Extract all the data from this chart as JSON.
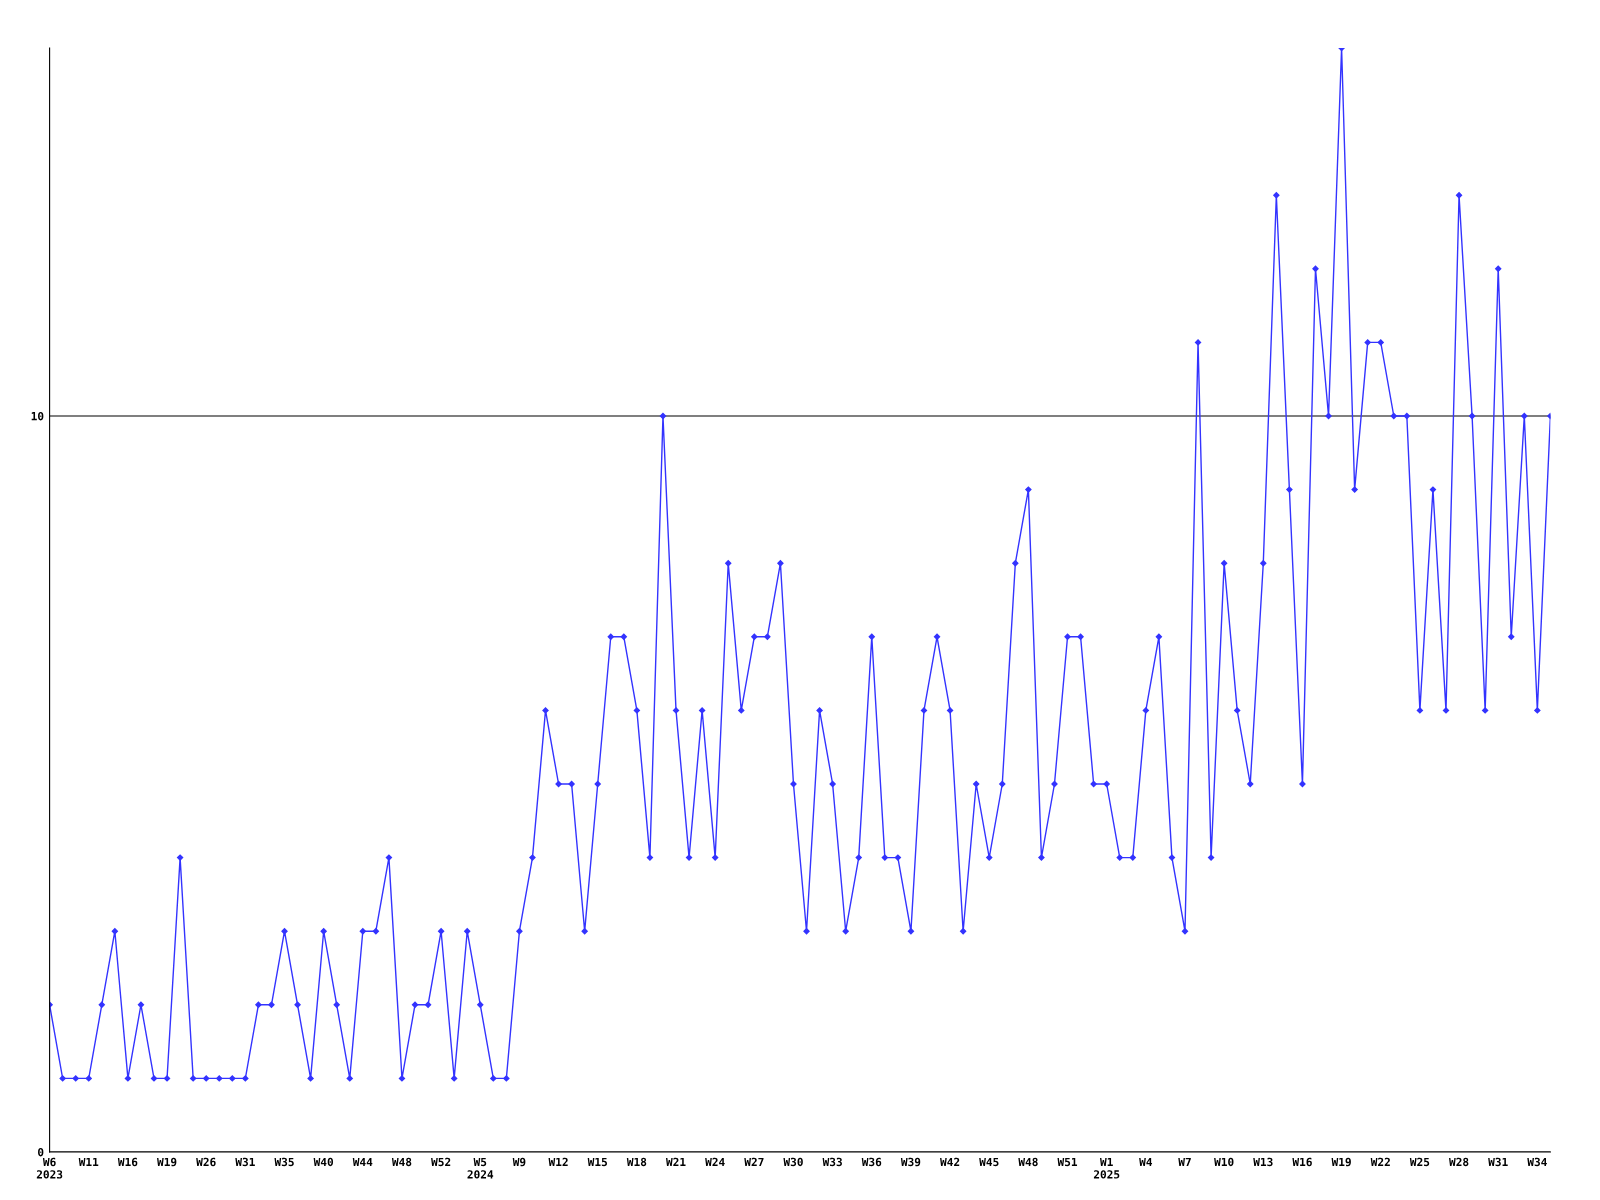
{
  "chart_data": {
    "type": "line",
    "categories": [
      "W6\n2023",
      null,
      null,
      "W11",
      null,
      null,
      "W16",
      null,
      null,
      "W19",
      null,
      null,
      "W26",
      null,
      null,
      "W31",
      null,
      null,
      "W35",
      null,
      null,
      "W40",
      null,
      null,
      "W44",
      null,
      null,
      "W48",
      null,
      null,
      "W52",
      null,
      null,
      "W5\n2024",
      null,
      null,
      "W9",
      null,
      null,
      "W12",
      null,
      null,
      "W15",
      null,
      null,
      "W18",
      null,
      null,
      "W21",
      null,
      null,
      "W24",
      null,
      null,
      "W27",
      null,
      null,
      "W30",
      null,
      null,
      "W33",
      null,
      null,
      "W36",
      null,
      null,
      "W39",
      null,
      null,
      "W42",
      null,
      null,
      "W45",
      null,
      null,
      "W48",
      null,
      null,
      "W51",
      null,
      null,
      "W1\n2025",
      null,
      null,
      "W4",
      null,
      null,
      "W7",
      null,
      null,
      "W10",
      null,
      null,
      "W13",
      null,
      null,
      "W16",
      null,
      null,
      "W19",
      null,
      null,
      "W22",
      null,
      null,
      "W25",
      null,
      null,
      "W28",
      null,
      null,
      "W31",
      null,
      null,
      "W34",
      null
    ],
    "series": [
      {
        "color": "#3333ff",
        "values": [
          2,
          1,
          1,
          1,
          2,
          3,
          1,
          2,
          1,
          1,
          4,
          1,
          1,
          1,
          1,
          1,
          2,
          2,
          3,
          2,
          1,
          3,
          2,
          1,
          3,
          3,
          4,
          1,
          2,
          2,
          3,
          1,
          3,
          2,
          1,
          1,
          3,
          4,
          6,
          5,
          5,
          3,
          5,
          7,
          7,
          6,
          4,
          10,
          6,
          4,
          6,
          4,
          8,
          6,
          7,
          7,
          8,
          5,
          3,
          6,
          5,
          3,
          4,
          7,
          4,
          4,
          3,
          6,
          7,
          6,
          3,
          5,
          4,
          5,
          8,
          9,
          4,
          5,
          7,
          7,
          5,
          5,
          4,
          4,
          6,
          7,
          4,
          3,
          11,
          4,
          8,
          6,
          5,
          8,
          13,
          9,
          5,
          12,
          10,
          15,
          9,
          11,
          11,
          10,
          10,
          6,
          9,
          6,
          13,
          10,
          6,
          12,
          7,
          10,
          6,
          10
        ]
      }
    ],
    "ylim": [
      0,
      15
    ],
    "yticks": [
      0,
      10
    ],
    "grid": "y",
    "marker": "diamond",
    "line_style": "solid"
  }
}
